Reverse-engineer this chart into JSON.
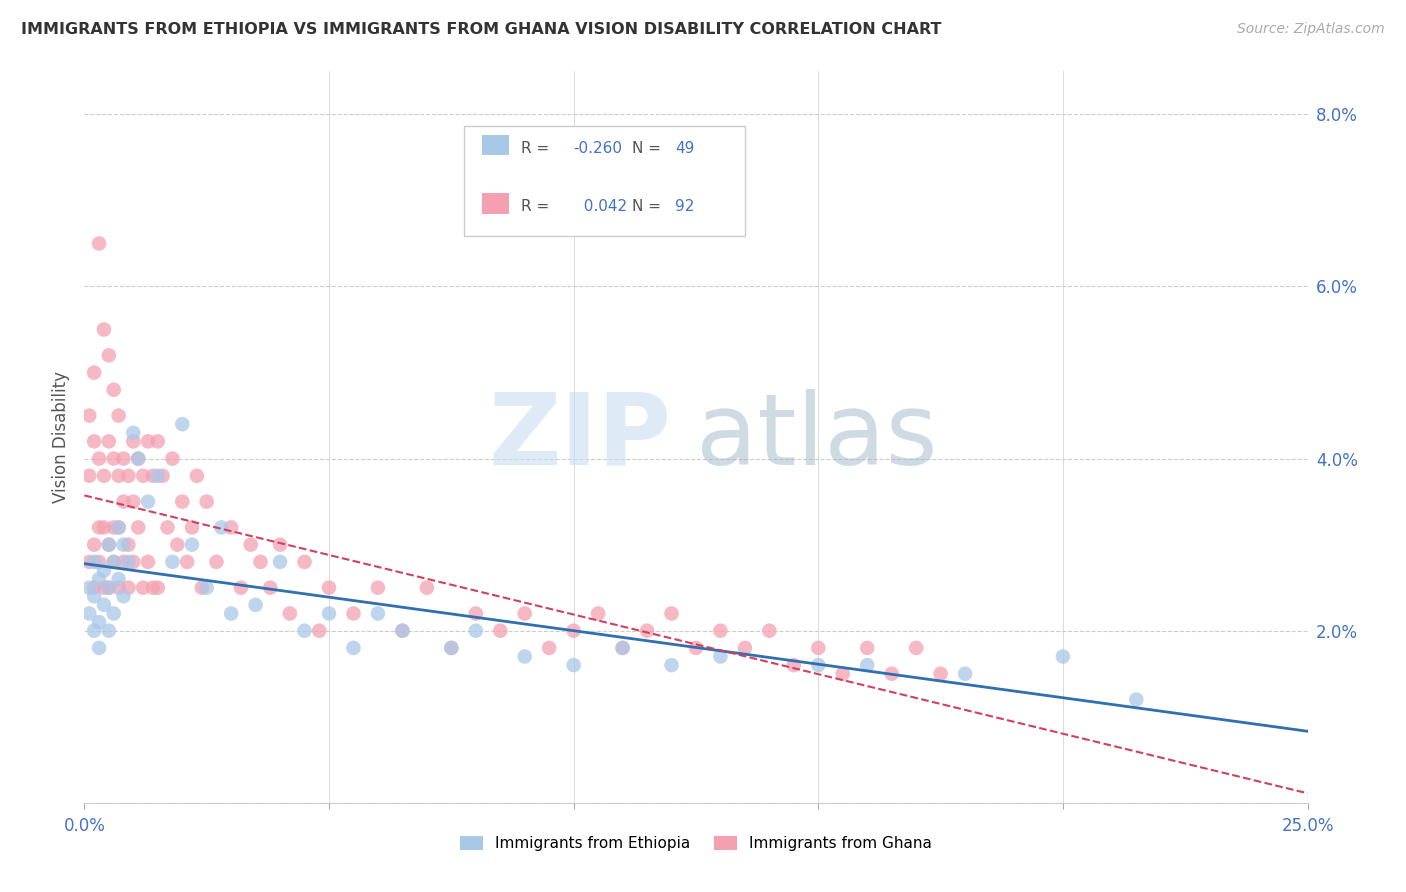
{
  "title": "IMMIGRANTS FROM ETHIOPIA VS IMMIGRANTS FROM GHANA VISION DISABILITY CORRELATION CHART",
  "source": "Source: ZipAtlas.com",
  "ylabel": "Vision Disability",
  "xlim": [
    0.0,
    0.25
  ],
  "ylim": [
    0.0,
    0.085
  ],
  "ethiopia_color": "#a8c8e8",
  "ghana_color": "#f4a0b0",
  "ethiopia_R": -0.26,
  "ethiopia_N": 49,
  "ghana_R": 0.042,
  "ghana_N": 92,
  "ethiopia_line_color": "#3070b0",
  "ghana_line_color": "#d04060",
  "watermark_zip_color": "#c8dff0",
  "watermark_atlas_color": "#a0b8c8",
  "legend_label_ethiopia": "Immigrants from Ethiopia",
  "legend_label_ghana": "Immigrants from Ghana",
  "ethiopia_x": [
    0.001,
    0.001,
    0.002,
    0.002,
    0.002,
    0.003,
    0.003,
    0.003,
    0.004,
    0.004,
    0.005,
    0.005,
    0.005,
    0.006,
    0.006,
    0.007,
    0.007,
    0.008,
    0.008,
    0.009,
    0.01,
    0.011,
    0.013,
    0.015,
    0.018,
    0.02,
    0.022,
    0.025,
    0.028,
    0.03,
    0.035,
    0.04,
    0.045,
    0.05,
    0.055,
    0.06,
    0.065,
    0.075,
    0.08,
    0.09,
    0.1,
    0.11,
    0.12,
    0.13,
    0.15,
    0.16,
    0.18,
    0.2,
    0.215
  ],
  "ethiopia_y": [
    0.025,
    0.022,
    0.028,
    0.02,
    0.024,
    0.026,
    0.021,
    0.018,
    0.027,
    0.023,
    0.03,
    0.025,
    0.02,
    0.028,
    0.022,
    0.032,
    0.026,
    0.03,
    0.024,
    0.028,
    0.043,
    0.04,
    0.035,
    0.038,
    0.028,
    0.044,
    0.03,
    0.025,
    0.032,
    0.022,
    0.023,
    0.028,
    0.02,
    0.022,
    0.018,
    0.022,
    0.02,
    0.018,
    0.02,
    0.017,
    0.016,
    0.018,
    0.016,
    0.017,
    0.016,
    0.016,
    0.015,
    0.017,
    0.012
  ],
  "ghana_x": [
    0.001,
    0.001,
    0.001,
    0.002,
    0.002,
    0.002,
    0.002,
    0.003,
    0.003,
    0.003,
    0.003,
    0.004,
    0.004,
    0.004,
    0.004,
    0.005,
    0.005,
    0.005,
    0.005,
    0.006,
    0.006,
    0.006,
    0.006,
    0.007,
    0.007,
    0.007,
    0.007,
    0.008,
    0.008,
    0.008,
    0.009,
    0.009,
    0.009,
    0.01,
    0.01,
    0.01,
    0.011,
    0.011,
    0.012,
    0.012,
    0.013,
    0.013,
    0.014,
    0.014,
    0.015,
    0.015,
    0.016,
    0.017,
    0.018,
    0.019,
    0.02,
    0.021,
    0.022,
    0.023,
    0.024,
    0.025,
    0.027,
    0.03,
    0.032,
    0.034,
    0.036,
    0.038,
    0.04,
    0.042,
    0.045,
    0.048,
    0.05,
    0.055,
    0.06,
    0.065,
    0.07,
    0.075,
    0.08,
    0.085,
    0.09,
    0.095,
    0.1,
    0.105,
    0.11,
    0.115,
    0.12,
    0.125,
    0.13,
    0.135,
    0.14,
    0.145,
    0.15,
    0.155,
    0.16,
    0.165,
    0.17,
    0.175
  ],
  "ghana_y": [
    0.038,
    0.045,
    0.028,
    0.042,
    0.03,
    0.05,
    0.025,
    0.065,
    0.04,
    0.032,
    0.028,
    0.055,
    0.038,
    0.032,
    0.025,
    0.042,
    0.052,
    0.03,
    0.025,
    0.048,
    0.04,
    0.032,
    0.028,
    0.045,
    0.038,
    0.032,
    0.025,
    0.04,
    0.035,
    0.028,
    0.038,
    0.03,
    0.025,
    0.042,
    0.035,
    0.028,
    0.04,
    0.032,
    0.038,
    0.025,
    0.042,
    0.028,
    0.038,
    0.025,
    0.042,
    0.025,
    0.038,
    0.032,
    0.04,
    0.03,
    0.035,
    0.028,
    0.032,
    0.038,
    0.025,
    0.035,
    0.028,
    0.032,
    0.025,
    0.03,
    0.028,
    0.025,
    0.03,
    0.022,
    0.028,
    0.02,
    0.025,
    0.022,
    0.025,
    0.02,
    0.025,
    0.018,
    0.022,
    0.02,
    0.022,
    0.018,
    0.02,
    0.022,
    0.018,
    0.02,
    0.022,
    0.018,
    0.02,
    0.018,
    0.02,
    0.016,
    0.018,
    0.015,
    0.018,
    0.015,
    0.018,
    0.015
  ]
}
